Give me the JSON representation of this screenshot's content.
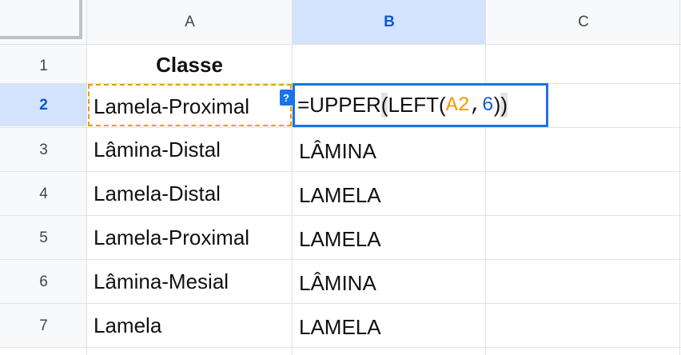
{
  "columns": [
    "A",
    "B",
    "C"
  ],
  "rows": [
    "1",
    "2",
    "3",
    "4",
    "5",
    "6",
    "7"
  ],
  "active_column": "B",
  "active_row": "2",
  "cells": {
    "A1": "Classe",
    "A2": "Lamela-Proximal",
    "A3": "Lâmina-Distal",
    "A4": "Lamela-Distal",
    "A5": "Lamela-Proximal",
    "A6": "Lâmina-Mesial",
    "A7": "Lamela",
    "B3": "LÂMINA",
    "B4": "LAMELA",
    "B5": "LAMELA",
    "B6": "LÂMINA",
    "B7": "LAMELA"
  },
  "formula_editor": {
    "prefix": "=UPPER",
    "open1": "(",
    "func2": "LEFT",
    "open2": "(",
    "ref": "A2",
    "comma": ",",
    "num": "6",
    "close2": ")",
    "close1": ")"
  },
  "help_badge": "?",
  "colors": {
    "active_header_bg": "#d3e3fd",
    "active_header_text": "#0b57d0",
    "editor_border": "#1a73e8",
    "reference_color": "#f29900",
    "number_color": "#1a5fcf"
  }
}
